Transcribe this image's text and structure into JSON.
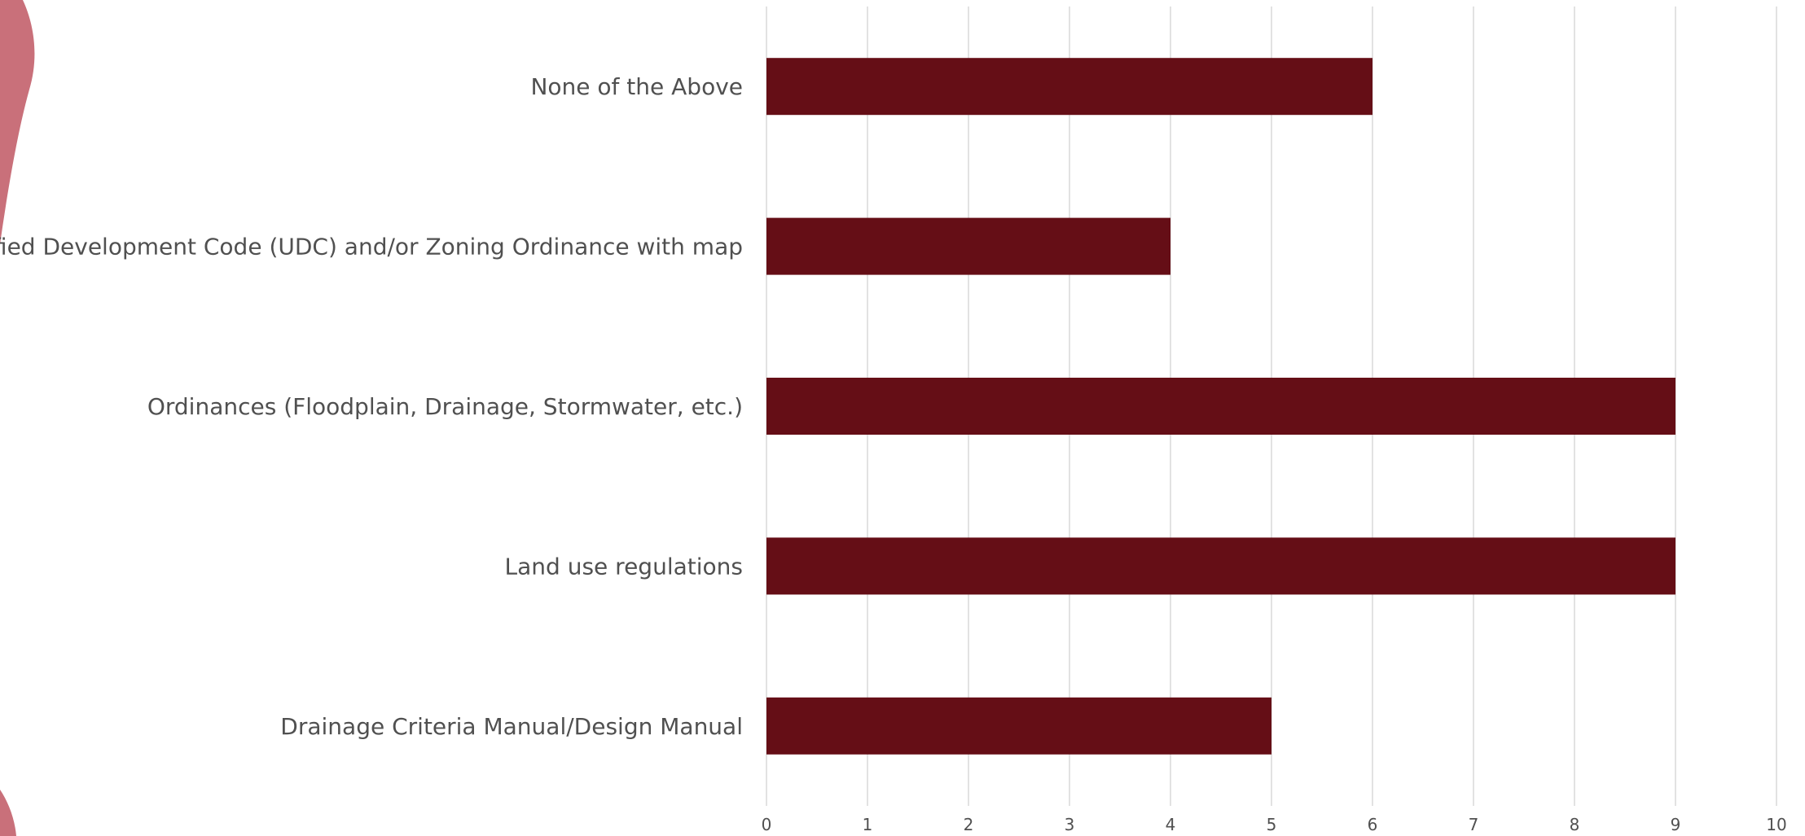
{
  "chart_data": {
    "type": "bar",
    "orientation": "horizontal",
    "categories": [
      "None of the Above",
      "Unified Development Code (UDC) and/or Zoning Ordinance with map",
      "Ordinances (Floodplain, Drainage, Stormwater, etc.)",
      "Land use regulations",
      "Drainage Criteria Manual/Design Manual"
    ],
    "values": [
      6,
      4,
      9,
      9,
      5
    ],
    "xlim": [
      0,
      10
    ],
    "x_ticks": [
      "0",
      "1",
      "2",
      "3",
      "4",
      "5",
      "6",
      "7",
      "8",
      "9",
      "10"
    ],
    "grid": "vertical",
    "title": "",
    "xlabel": "",
    "ylabel": "",
    "bar_color": "#650e16",
    "grid_color": "#d9d9d9",
    "decoration_color": "#c9707a"
  }
}
